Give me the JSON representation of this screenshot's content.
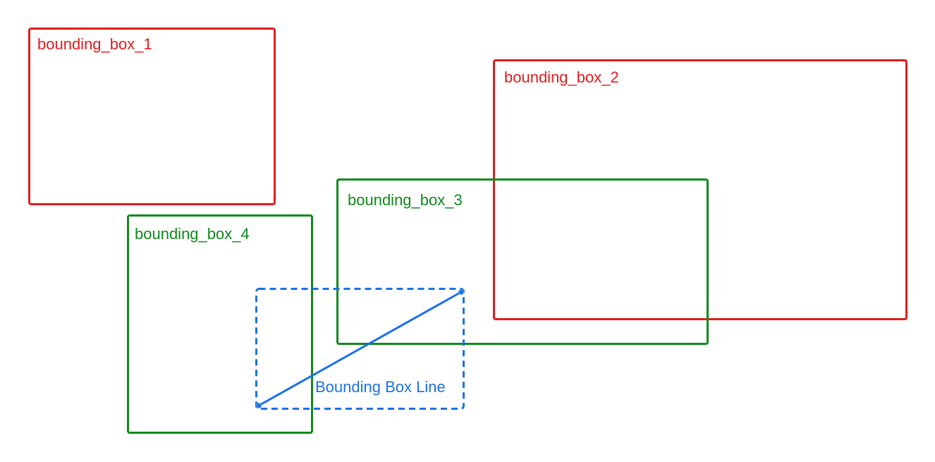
{
  "colors": {
    "red": "#e31b1b",
    "green": "#0e8a1a",
    "blue": "#1a72e6"
  },
  "boxes": [
    {
      "label": "bounding_box_1",
      "color": "red"
    },
    {
      "label": "bounding_box_2",
      "color": "red"
    },
    {
      "label": "bounding_box_3",
      "color": "green"
    },
    {
      "label": "bounding_box_4",
      "color": "green"
    }
  ],
  "line": {
    "label": "Bounding Box Line",
    "color": "blue",
    "style": "dashed bounding box with diagonal line"
  }
}
